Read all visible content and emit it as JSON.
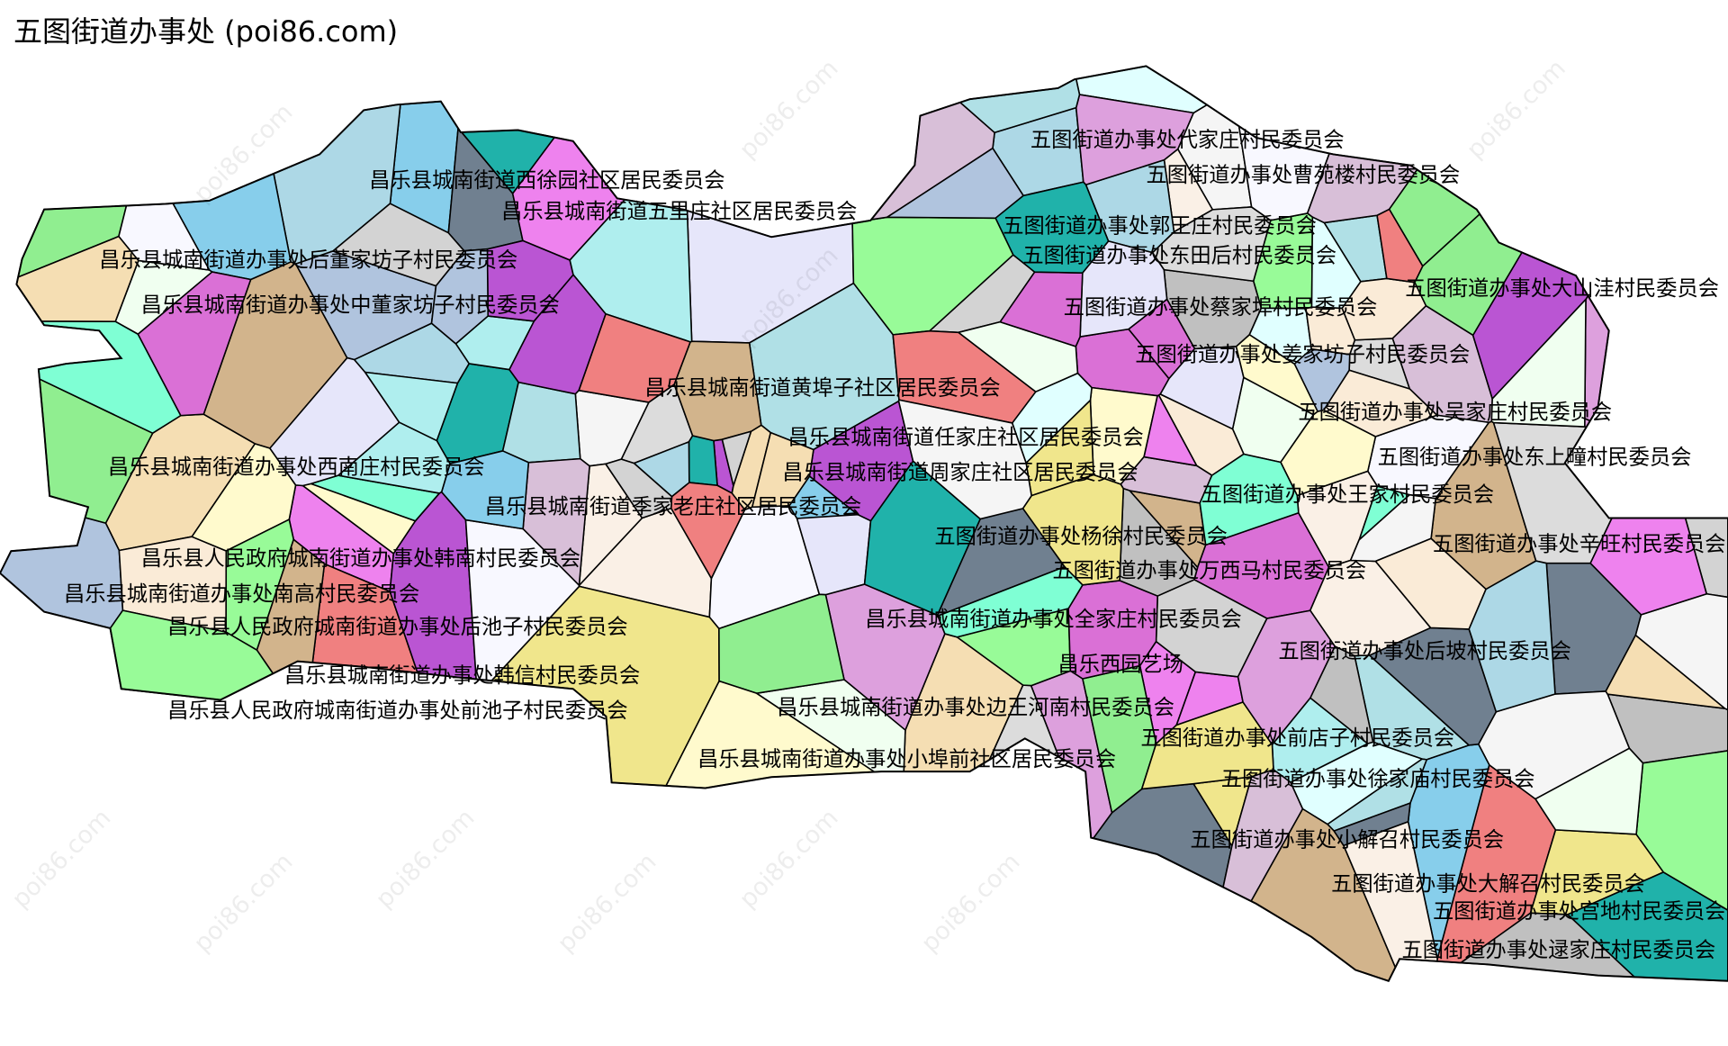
{
  "title": "五图街道办事处 (poi86.com)",
  "watermark": "poi86.com",
  "region_palette": [
    "#da70d6",
    "#d2b48c",
    "#7fffd4",
    "#20b2aa",
    "#87ceeb",
    "#d3d3d3",
    "#add8e6",
    "#ee82ee",
    "#faf0e6",
    "#dda0dd",
    "#f0e68c",
    "#e0ffff",
    "#f08080",
    "#faebd7",
    "#708090",
    "#98fb98",
    "#b0c4de",
    "#ba55d3",
    "#afeeee",
    "#f5deb3",
    "#c0c0c0",
    "#fffacd",
    "#d8bfd8",
    "#f8f8ff",
    "#90ee90",
    "#e6e6fa",
    "#f0fff0",
    "#dcdcdc",
    "#b0e0e6",
    "#f5f5f5"
  ],
  "labels": [
    "昌乐县城南街道西徐园社区居民委员会",
    "昌乐县城南街道五里庄社区居民委员会",
    "昌乐县城南街道办事处后董家坊子村民委员会",
    "昌乐县城南街道办事处中董家坊子村民委员会",
    "昌乐县城南街道办事处西南庄村民委员会",
    "昌乐县城南街道黄埠子社区居民委员会",
    "昌乐县城南街道任家庄社区居民委员会",
    "昌乐县城南街道季家老庄社区居民委员会",
    "昌乐县城南街道周家庄社区居民委员会",
    "昌乐县人民政府城南街道办事处韩南村民委员会",
    "昌乐县城南街道办事处南高村民委员会",
    "昌乐县人民政府城南街道办事处后池子村民委员会",
    "昌乐县城南街道办事处韩信村民委员会",
    "昌乐县人民政府城南街道办事处前池子村民委员会",
    "昌乐县城南街道办事处全家庄村民委员会",
    "昌乐县城南街道办事处边王河南村民委员会",
    "昌乐县城南街道办事处小埠前社区居民委员会",
    "昌乐西园艺场",
    "五图街道办事处代家庄村民委员会",
    "五图街道办事处曹苑楼村民委员会",
    "五图街道办事处郭王庄村民委员会",
    "五图街道办事处东田后村民委员会",
    "五图街道办事处蔡家埠村民委员会",
    "五图街道办事处大山洼村民委员会",
    "五图街道办事处姜家坊子村民委员会",
    "五图街道办事处吴家庄村民委员会",
    "五图街道办事处王家村民委员会",
    "五图街道办事处杨徐村民委员会",
    "五图街道办事处万西马村民委员会",
    "五图街道办事处后坡村民委员会",
    "五图街道办事处前店子村民委员会",
    "五图街道办事处徐家庙村民委员会",
    "五图街道办事处小解召村民委员会",
    "五图街道办事处大解召村民委员会",
    "五图街道办事处宫地村民委员会",
    "五图街道办事处逯家庄村民委员会",
    "五图街道办事处辛旺村民委员会",
    "五图街道办事处东上疃村民委员会"
  ]
}
